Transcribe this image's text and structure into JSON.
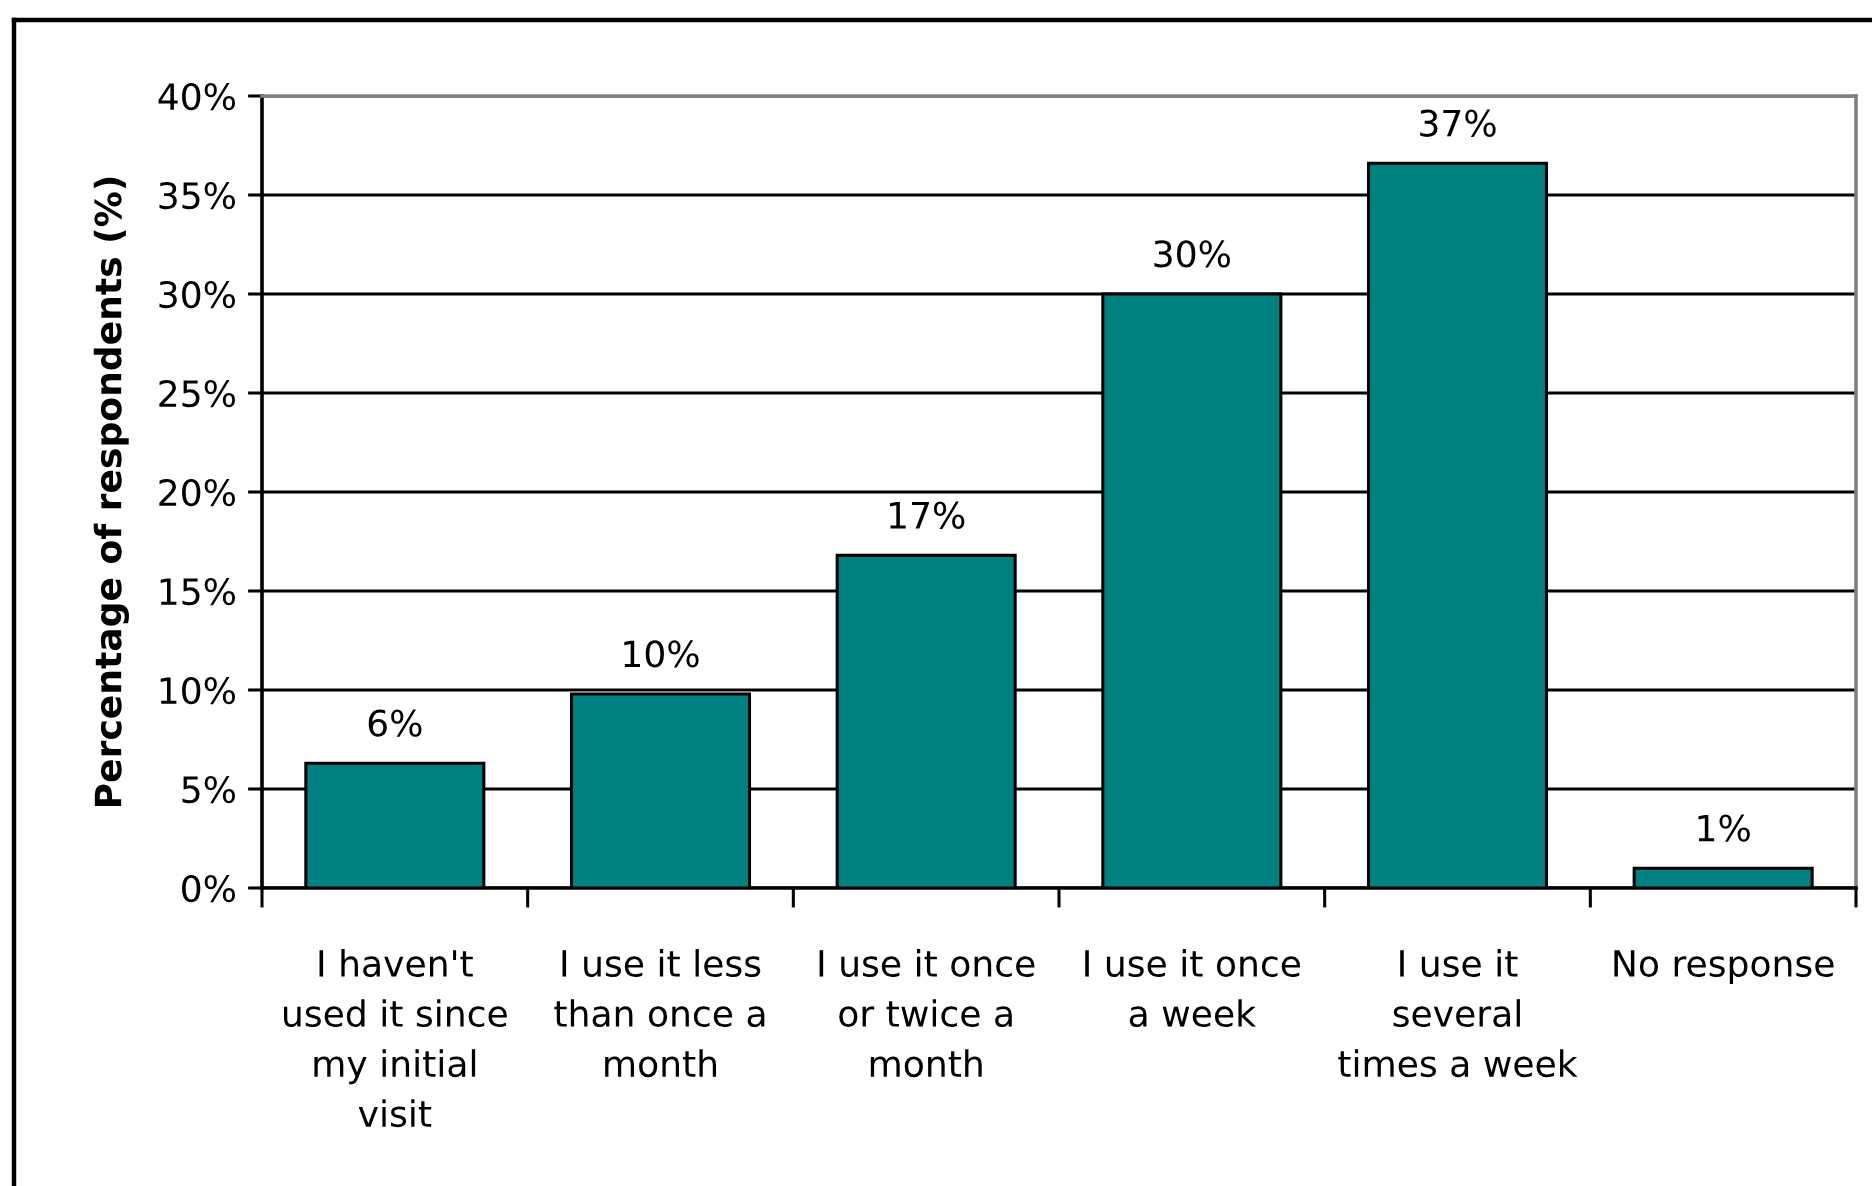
{
  "chart_data": {
    "type": "bar",
    "ylabel": "Percentage of respondents (%)",
    "categories": [
      "I haven't\nused it since\nmy initial\nvisit",
      "I use it less\nthan once a\nmonth",
      "I use it once\nor twice a\nmonth",
      "I use it once\na week",
      "I use it\nseveral\ntimes a week",
      "No response"
    ],
    "values": [
      6.3,
      9.8,
      16.8,
      30.0,
      36.6,
      1.0
    ],
    "value_labels": [
      "6%",
      "10%",
      "17%",
      "30%",
      "37%",
      "1%"
    ],
    "color": "#008080",
    "ylim": [
      0,
      40
    ],
    "yticks": [
      {
        "value": 0,
        "label": "0%"
      },
      {
        "value": 5,
        "label": "5%"
      },
      {
        "value": 10,
        "label": "10%"
      },
      {
        "value": 15,
        "label": "15%"
      },
      {
        "value": 20,
        "label": "20%"
      },
      {
        "value": 25,
        "label": "25%"
      },
      {
        "value": 30,
        "label": "30%"
      },
      {
        "value": 35,
        "label": "35%"
      },
      {
        "value": 40,
        "label": "40%"
      }
    ],
    "grid": "y"
  }
}
